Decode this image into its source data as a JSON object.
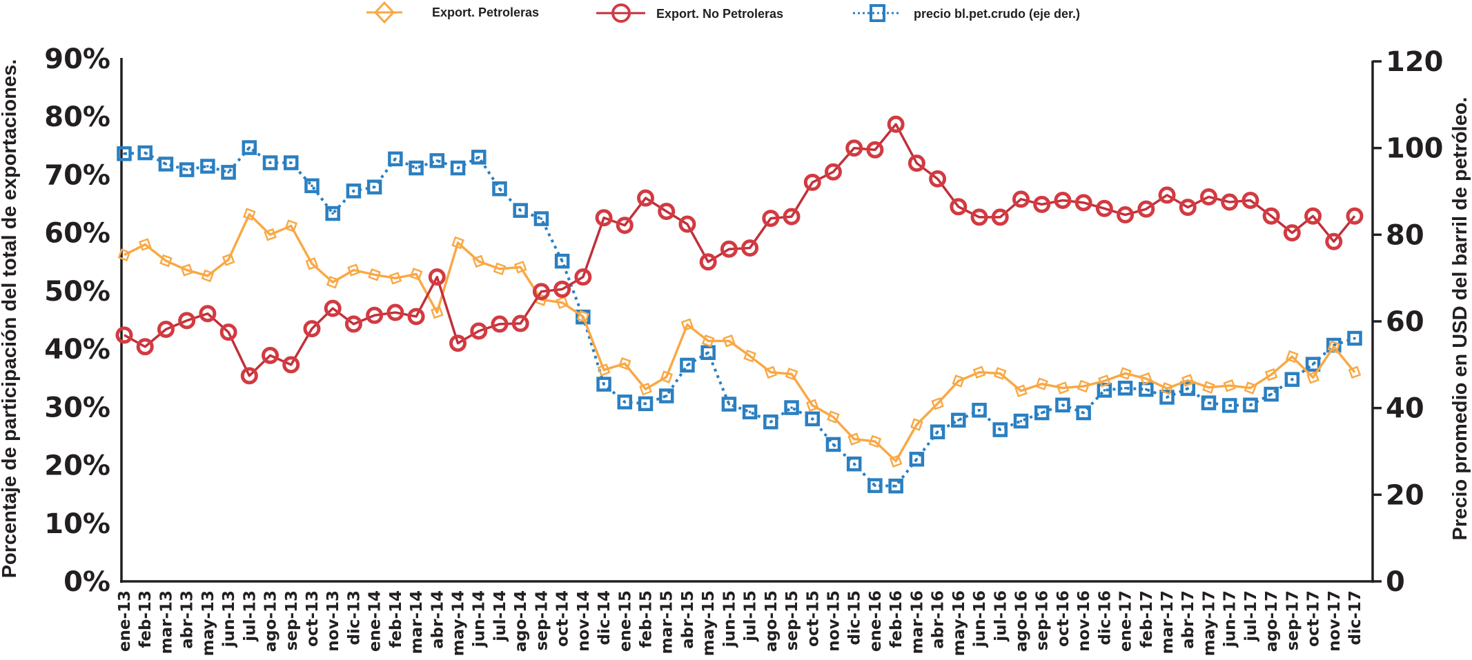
{
  "chart_data": {
    "type": "line",
    "title": "",
    "ylabel": "Porcentaje de participación del total de exportaciones.",
    "ylabel_right": "Precio promedio en USD del barril de petróleo.",
    "xlabel": "",
    "ylim": [
      0,
      90
    ],
    "ylim_right": [
      0,
      120
    ],
    "yticks": [
      "0%",
      "10%",
      "20%",
      "30%",
      "40%",
      "50%",
      "60%",
      "70%",
      "80%",
      "90%"
    ],
    "yticks_right": [
      "0",
      "20",
      "40",
      "60",
      "80",
      "100",
      "120"
    ],
    "grid": false,
    "legend_position": "top",
    "categories": [
      "ene-13",
      "feb-13",
      "mar-13",
      "abr-13",
      "may-13",
      "jun-13",
      "jul-13",
      "ago-13",
      "sep-13",
      "oct-13",
      "nov-13",
      "dic-13",
      "ene-14",
      "feb-14",
      "mar-14",
      "abr-14",
      "may-14",
      "jun-14",
      "jul-14",
      "ago-14",
      "sep-14",
      "oct-14",
      "nov-14",
      "dic-14",
      "ene-15",
      "feb-15",
      "mar-15",
      "abr-15",
      "may-15",
      "jun-15",
      "jul-15",
      "ago-15",
      "sep-15",
      "oct-15",
      "nov-15",
      "dic-15",
      "ene-16",
      "feb-16",
      "mar-16",
      "abr-16",
      "may-16",
      "jun-16",
      "jul-16",
      "ago-16",
      "sep-16",
      "oct-16",
      "nov-16",
      "dic-16",
      "ene-17",
      "feb-17",
      "mar-17",
      "abr-17",
      "may-17",
      "jun-17",
      "jul-17",
      "ago-17",
      "sep-17",
      "oct-17",
      "nov-17",
      "dic-17"
    ],
    "series": [
      {
        "name": "Export. Petroleras",
        "axis": "left",
        "color": "#f9a844",
        "marker": "diamond",
        "line": "solid",
        "values": [
          56.2,
          58.0,
          55.2,
          53.6,
          52.6,
          55.4,
          63.2,
          59.7,
          61.2,
          54.7,
          51.5,
          53.6,
          52.8,
          52.2,
          52.9,
          46.3,
          58.3,
          55.1,
          53.8,
          54.1,
          48.5,
          48.0,
          45.6,
          36.4,
          37.5,
          33.1,
          35.2,
          44.2,
          41.4,
          41.4,
          38.8,
          36.0,
          35.7,
          30.3,
          28.3,
          24.5,
          24.1,
          20.7,
          27.0,
          30.6,
          34.5,
          36.0,
          35.8,
          32.8,
          34.0,
          33.3,
          33.6,
          34.5,
          35.8,
          34.9,
          33.2,
          34.6,
          33.4,
          33.7,
          33.3,
          35.6,
          38.7,
          35.1,
          40.4,
          36.0
        ]
      },
      {
        "name": "Export. No Petroleras",
        "axis": "left",
        "color": "#d33a41",
        "marker": "circle",
        "line": "solid",
        "values": [
          42.4,
          40.4,
          43.4,
          44.9,
          46.1,
          42.9,
          35.4,
          38.9,
          37.3,
          43.5,
          47.0,
          44.3,
          45.8,
          46.3,
          45.6,
          52.4,
          41.0,
          43.1,
          44.3,
          44.4,
          49.9,
          50.3,
          52.4,
          62.6,
          61.3,
          66.0,
          63.7,
          61.5,
          55.0,
          57.2,
          57.4,
          62.5,
          62.8,
          68.7,
          70.5,
          74.6,
          74.3,
          78.7,
          72.0,
          69.3,
          64.5,
          62.7,
          62.7,
          65.8,
          64.9,
          65.6,
          65.2,
          64.2,
          63.1,
          64.1,
          66.5,
          64.4,
          66.2,
          65.3,
          65.6,
          62.9,
          60.0,
          62.9,
          58.5,
          62.9
        ]
      },
      {
        "name": "precio bl.pet.crudo (eje der.)",
        "axis": "right",
        "color": "#2a7fc1",
        "marker": "square",
        "line": "dotted",
        "values": [
          98.7,
          98.9,
          96.3,
          95.0,
          95.8,
          94.4,
          100.1,
          96.6,
          96.6,
          91.3,
          84.9,
          90.1,
          91.0,
          97.5,
          95.4,
          97.1,
          95.4,
          97.9,
          90.6,
          85.6,
          83.7,
          73.9,
          61.0,
          45.5,
          41.4,
          41.0,
          42.8,
          49.9,
          52.8,
          40.9,
          39.1,
          36.8,
          40.1,
          37.5,
          31.6,
          27.1,
          22.1,
          22.0,
          28.2,
          34.5,
          37.2,
          39.5,
          35.0,
          37.0,
          38.9,
          40.7,
          38.9,
          44.1,
          44.6,
          44.3,
          42.5,
          44.5,
          41.2,
          40.6,
          40.7,
          43.2,
          46.6,
          50.1,
          54.5,
          56.1
        ]
      }
    ]
  },
  "legend": {
    "items": [
      {
        "label": "Export. Petroleras"
      },
      {
        "label": "Export. No Petroleras"
      },
      {
        "label": "precio bl.pet.crudo (eje der.)"
      }
    ]
  }
}
